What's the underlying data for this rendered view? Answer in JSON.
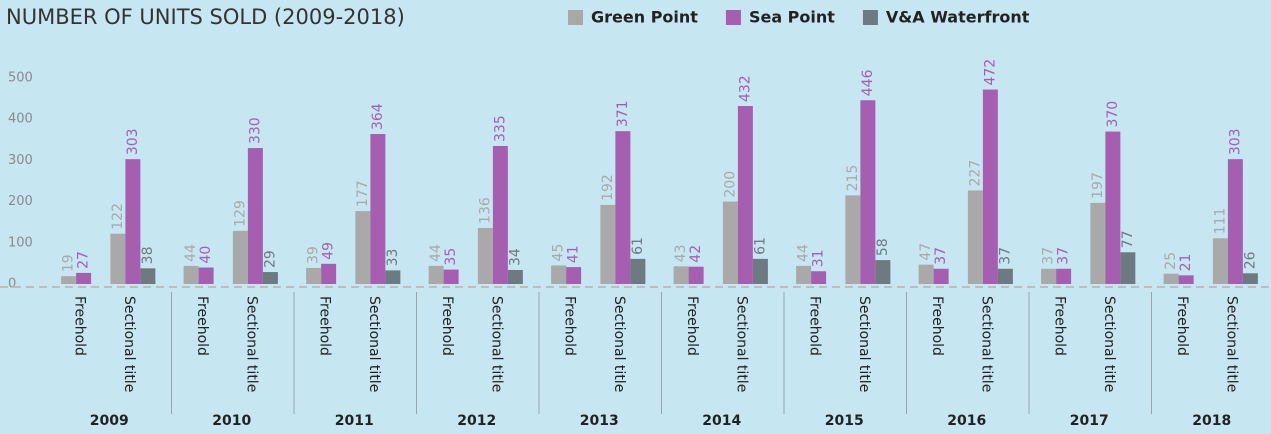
{
  "chart_data": {
    "type": "bar",
    "title": "NUMBER OF UNITS SOLD (2009-2018)",
    "groups": [
      "2009",
      "2010",
      "2011",
      "2012",
      "2013",
      "2014",
      "2015",
      "2016",
      "2017",
      "2018"
    ],
    "categories": [
      "Freehold",
      "Sectional title",
      "Freehold",
      "Sectional title",
      "Freehold",
      "Sectional title",
      "Freehold",
      "Sectional title",
      "Freehold",
      "Sectional title",
      "Freehold",
      "Sectional title",
      "Freehold",
      "Sectional title",
      "Freehold",
      "Sectional title",
      "Freehold",
      "Sectional title",
      "Freehold",
      "Sectional title"
    ],
    "series": [
      {
        "name": "Green Point",
        "color": "#a9a9a9",
        "label_color": "#a9a9a9",
        "values": [
          19,
          122,
          44,
          129,
          39,
          177,
          44,
          136,
          45,
          192,
          43,
          200,
          44,
          215,
          47,
          227,
          37,
          197,
          25,
          111
        ]
      },
      {
        "name": "Sea Point",
        "color": "#a65fb0",
        "label_color": "#a65fb0",
        "values": [
          27,
          303,
          40,
          330,
          49,
          364,
          35,
          335,
          41,
          371,
          42,
          432,
          31,
          446,
          37,
          472,
          37,
          370,
          21,
          303
        ]
      },
      {
        "name": "V&A Waterfront",
        "color": "#6e7a81",
        "label_color": "#6e7a81",
        "values": [
          null,
          38,
          null,
          29,
          null,
          33,
          null,
          34,
          null,
          61,
          null,
          61,
          null,
          58,
          null,
          37,
          null,
          77,
          null,
          26
        ]
      }
    ],
    "ylim": [
      0,
      560
    ],
    "yticks": [
      0,
      100,
      200,
      300,
      400,
      500
    ],
    "grid": false,
    "legend": "top"
  }
}
